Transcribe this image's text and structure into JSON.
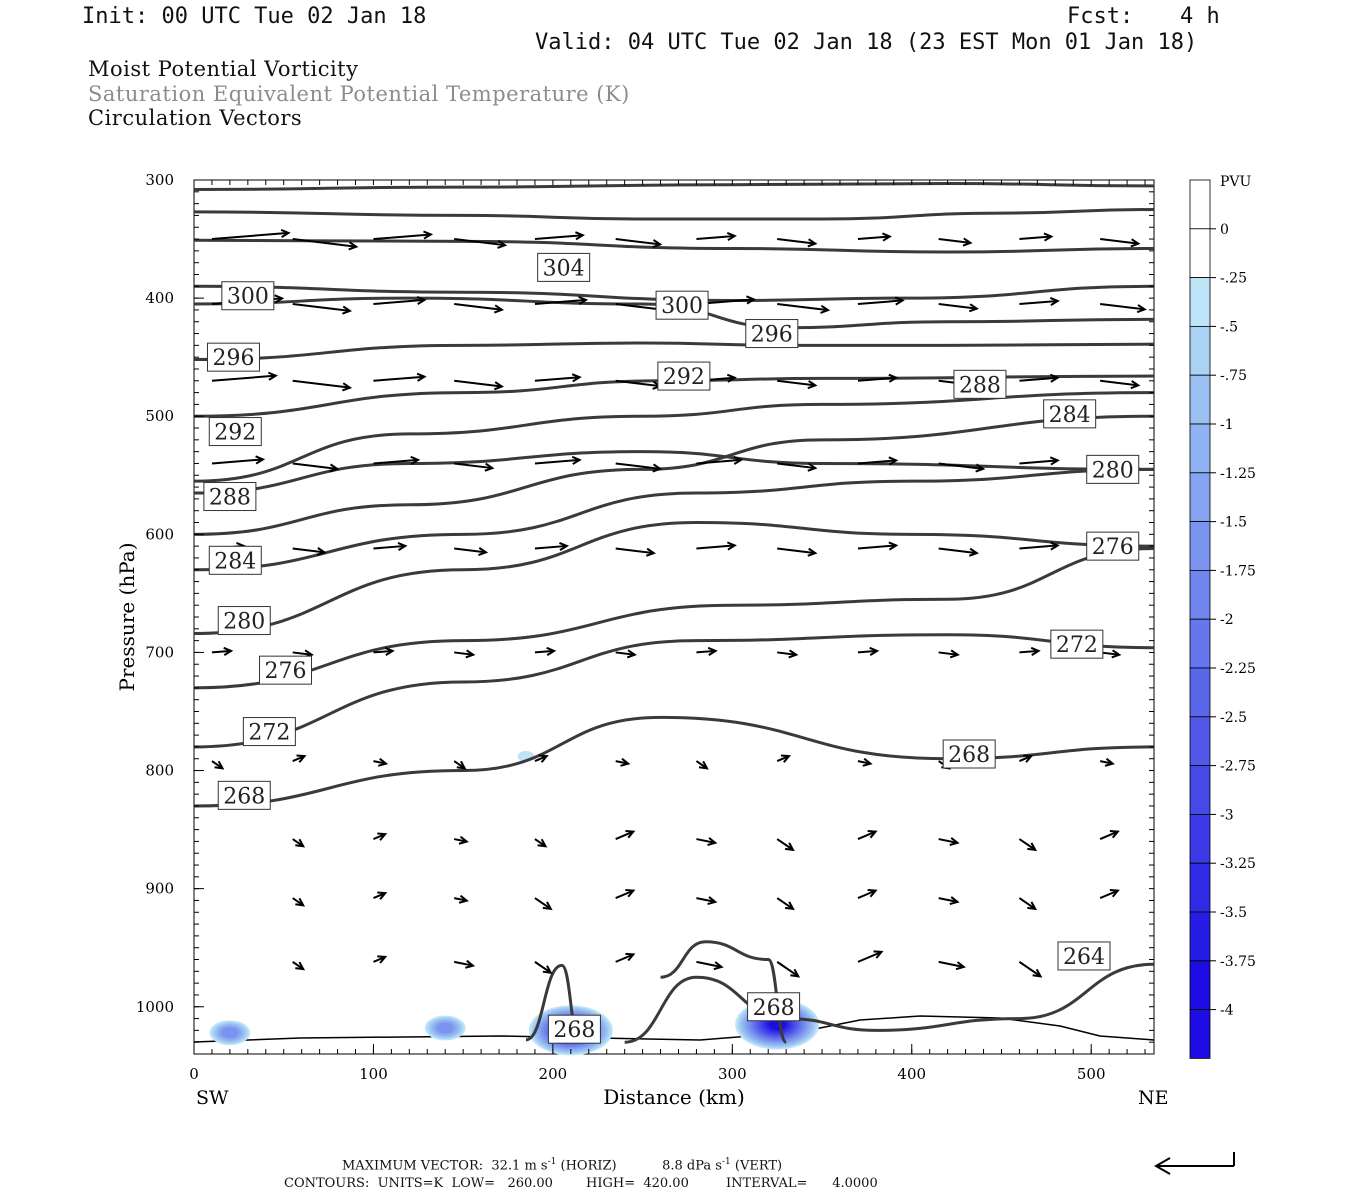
{
  "header": {
    "init": "Init: 00 UTC Tue 02 Jan 18",
    "fcst_label": "Fcst:",
    "fcst_value": "4 h",
    "valid": "Valid: 04 UTC Tue 02 Jan 18 (23 EST Mon 01 Jan 18)"
  },
  "fields": {
    "line1": "Moist Potential Vorticity",
    "line2": "Saturation Equivalent Potential Temperature (K)",
    "line3": "Circulation Vectors"
  },
  "colors": {
    "contour": "#3a3a3a",
    "field2_text": "#8c8c8c",
    "pv_shades": [
      "#ffffff",
      "#ffffff",
      "#bfe3f7",
      "#a9d2f5",
      "#9bc1f3",
      "#90b2f2",
      "#85a3f1",
      "#7b94ef",
      "#7085ee",
      "#6676ec",
      "#5b67eb",
      "#5158e9",
      "#4649e8",
      "#3c3ae6",
      "#312be5",
      "#271ce3",
      "#1c0de2"
    ]
  },
  "chart_data": {
    "type": "cross-section",
    "ylabel": "Pressure (hPa)",
    "xlabel": "Distance (km)",
    "left_end": "SW",
    "right_end": "NE",
    "x_ticks": [
      0,
      100,
      200,
      300,
      400,
      500
    ],
    "y_ticks": [
      300,
      400,
      500,
      600,
      700,
      800,
      900,
      1000
    ],
    "xlim": [
      0,
      535
    ],
    "ylim": [
      300,
      1040
    ],
    "colorbar": {
      "title": "PVU",
      "labels": [
        "0",
        "-.25",
        "-.5",
        "-.75",
        "-1",
        "-1.25",
        "-1.5",
        "-1.75",
        "-2",
        "-2.25",
        "-2.5",
        "-2.75",
        "-3",
        "-3.25",
        "-3.5",
        "-3.75",
        "-4"
      ]
    },
    "theta_es_contours": [
      {
        "value": 300,
        "label": "300",
        "label_at": [
          30,
          398
        ],
        "points": [
          [
            0,
            308
          ],
          [
            150,
            306
          ],
          [
            300,
            304
          ],
          [
            420,
            303
          ],
          [
            535,
            305
          ]
        ]
      },
      {
        "value": 304,
        "label": "304",
        "label_at": [
          206,
          374
        ],
        "points": [
          [
            0,
            327
          ],
          [
            150,
            330
          ],
          [
            250,
            333
          ],
          [
            350,
            333
          ],
          [
            450,
            328
          ],
          [
            535,
            325
          ]
        ]
      },
      {
        "value": 300,
        "label": "300",
        "label_at": [
          272,
          406
        ],
        "points": [
          [
            0,
            351
          ],
          [
            150,
            352
          ],
          [
            300,
            358
          ],
          [
            420,
            361
          ],
          [
            535,
            358
          ]
        ]
      },
      {
        "value": 300,
        "label": "",
        "label_at": null,
        "points": [
          [
            0,
            390
          ],
          [
            150,
            395
          ],
          [
            300,
            402
          ],
          [
            400,
            400
          ],
          [
            535,
            390
          ]
        ]
      },
      {
        "value": 296,
        "label": "296",
        "label_at": [
          322,
          430
        ],
        "points": [
          [
            0,
            405
          ],
          [
            120,
            400
          ],
          [
            250,
            405
          ],
          [
            330,
            425
          ],
          [
            420,
            420
          ],
          [
            535,
            418
          ]
        ]
      },
      {
        "value": 296,
        "label": "296",
        "label_at": [
          22,
          450
        ],
        "points": [
          [
            0,
            452
          ],
          [
            150,
            440
          ],
          [
            250,
            438
          ],
          [
            330,
            440
          ],
          [
            420,
            440
          ],
          [
            535,
            439
          ]
        ]
      },
      {
        "value": 292,
        "label": "292",
        "label_at": [
          273,
          466
        ],
        "points": [
          [
            0,
            500
          ],
          [
            150,
            480
          ],
          [
            260,
            470
          ],
          [
            350,
            468
          ],
          [
            535,
            466
          ]
        ]
      },
      {
        "value": 288,
        "label": "288",
        "label_at": [
          438,
          473
        ],
        "points": [
          [
            0,
            555
          ],
          [
            120,
            515
          ],
          [
            250,
            500
          ],
          [
            350,
            490
          ],
          [
            535,
            480
          ]
        ]
      },
      {
        "value": 284,
        "label": "284",
        "label_at": [
          488,
          498
        ],
        "points": [
          [
            0,
            600
          ],
          [
            120,
            575
          ],
          [
            250,
            545
          ],
          [
            350,
            520
          ],
          [
            535,
            500
          ]
        ]
      },
      {
        "value": 292,
        "label": "292",
        "label_at": [
          23,
          513
        ],
        "points": [
          [
            0,
            565
          ],
          [
            120,
            540
          ],
          [
            250,
            530
          ],
          [
            350,
            540
          ],
          [
            535,
            545
          ]
        ]
      },
      {
        "value": 280,
        "label": "280",
        "label_at": [
          512,
          545
        ],
        "points": [
          [
            0,
            630
          ],
          [
            150,
            600
          ],
          [
            280,
            565
          ],
          [
            400,
            555
          ],
          [
            535,
            545
          ]
        ]
      },
      {
        "value": 288,
        "label": "288",
        "label_at": [
          20,
          568
        ],
        "points": [
          [
            0,
            684
          ],
          [
            150,
            630
          ],
          [
            280,
            590
          ],
          [
            400,
            600
          ],
          [
            535,
            610
          ]
        ]
      },
      {
        "value": 276,
        "label": "276",
        "label_at": [
          512,
          610
        ],
        "points": [
          [
            0,
            730
          ],
          [
            150,
            690
          ],
          [
            300,
            660
          ],
          [
            420,
            655
          ],
          [
            535,
            612
          ]
        ]
      },
      {
        "value": 284,
        "label": "284",
        "label_at": [
          23,
          622
        ],
        "points": [
          [
            0,
            780
          ],
          [
            150,
            725
          ],
          [
            280,
            690
          ],
          [
            420,
            685
          ],
          [
            535,
            696
          ]
        ]
      },
      {
        "value": 272,
        "label": "272",
        "label_at": [
          492,
          693
        ],
        "points": [
          [
            0,
            830
          ],
          [
            150,
            800
          ],
          [
            260,
            755
          ],
          [
            420,
            790
          ],
          [
            535,
            780
          ]
        ]
      },
      {
        "value": 280,
        "label": "280",
        "label_at": [
          28,
          673
        ],
        "points": [
          [
            0,
            0
          ],
          [
            0,
            0
          ]
        ]
      },
      {
        "value": 276,
        "label": "276",
        "label_at": [
          51,
          715
        ],
        "points": [
          [
            0,
            0
          ],
          [
            0,
            0
          ]
        ]
      },
      {
        "value": 272,
        "label": "272",
        "label_at": [
          42,
          767
        ],
        "points": [
          [
            0,
            0
          ],
          [
            0,
            0
          ]
        ]
      },
      {
        "value": 268,
        "label": "268",
        "label_at": [
          432,
          786
        ],
        "points": [
          [
            0,
            0
          ],
          [
            0,
            0
          ]
        ]
      },
      {
        "value": 268,
        "label": "268",
        "label_at": [
          28,
          821
        ],
        "points": [
          [
            0,
            0
          ],
          [
            0,
            0
          ]
        ]
      },
      {
        "value": 264,
        "label": "264",
        "label_at": [
          496,
          957
        ],
        "points": [
          [
            240,
            1030
          ],
          [
            280,
            975
          ],
          [
            330,
            1010
          ],
          [
            380,
            1020
          ],
          [
            460,
            1010
          ],
          [
            535,
            964
          ]
        ]
      },
      {
        "value": 268,
        "label": "268",
        "label_at": [
          212,
          1019
        ],
        "points": [
          [
            185,
            1028
          ],
          [
            205,
            965
          ],
          [
            215,
            1030
          ]
        ]
      },
      {
        "value": 268,
        "label": "268",
        "label_at": [
          323,
          1000
        ],
        "points": [
          [
            260,
            975
          ],
          [
            285,
            945
          ],
          [
            320,
            960
          ],
          [
            330,
            1030
          ]
        ]
      }
    ],
    "pv_blobs_negative": [
      {
        "x": 20,
        "p": 1022,
        "pvu": -1.5
      },
      {
        "x": 210,
        "p": 1020,
        "pvu": -4.0
      },
      {
        "x": 325,
        "p": 1015,
        "pvu": -3.75
      },
      {
        "x": 185,
        "p": 788,
        "pvu": -0.25
      },
      {
        "x": 140,
        "p": 1018,
        "pvu": -1.5
      }
    ],
    "max_vector": {
      "text": "MAXIMUM VECTOR:  32.1 m s",
      "horiz_suffix": " (HORIZ)",
      "vert": "8.8 dPa s",
      "vert_suffix": " (VERT)"
    },
    "contours_info": {
      "text": "CONTOURS:  UNITS=K  LOW=   260.00        HIGH=  420.00         INTERVAL=      4.0000"
    }
  }
}
